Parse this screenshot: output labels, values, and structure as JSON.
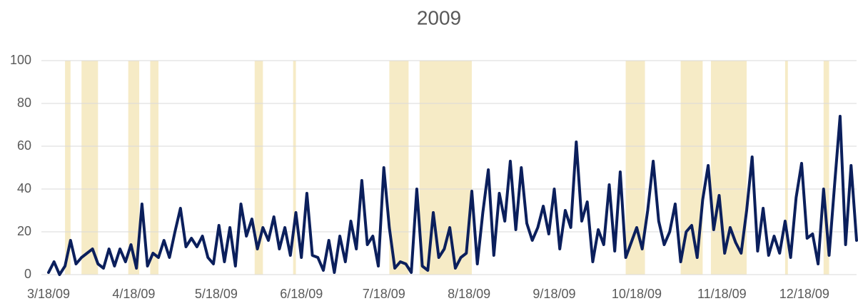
{
  "chart_data": {
    "type": "line",
    "title": "2009",
    "x": [
      "3/18/09",
      "3/20/09",
      "3/22/09",
      "3/24/09",
      "3/26/09",
      "3/28/09",
      "3/30/09",
      "4/1/09",
      "4/3/09",
      "4/5/09",
      "4/7/09",
      "4/9/09",
      "4/11/09",
      "4/13/09",
      "4/15/09",
      "4/17/09",
      "4/19/09",
      "4/21/09",
      "4/23/09",
      "4/25/09",
      "4/27/09",
      "4/29/09",
      "5/1/09",
      "5/3/09",
      "5/5/09",
      "5/7/09",
      "5/9/09",
      "5/11/09",
      "5/13/09",
      "5/15/09",
      "5/17/09",
      "5/19/09",
      "5/21/09",
      "5/23/09",
      "5/25/09",
      "5/27/09",
      "5/29/09",
      "5/31/09",
      "6/2/09",
      "6/4/09",
      "6/6/09",
      "6/8/09",
      "6/10/09",
      "6/12/09",
      "6/14/09",
      "6/16/09",
      "6/18/09",
      "6/20/09",
      "6/22/09",
      "6/24/09",
      "6/26/09",
      "6/28/09",
      "6/30/09",
      "7/2/09",
      "7/4/09",
      "7/6/09",
      "7/8/09",
      "7/10/09",
      "7/12/09",
      "7/14/09",
      "7/16/09",
      "7/18/09",
      "7/20/09",
      "7/22/09",
      "7/24/09",
      "7/26/09",
      "7/28/09",
      "7/30/09",
      "8/1/09",
      "8/3/09",
      "8/5/09",
      "8/7/09",
      "8/9/09",
      "8/11/09",
      "8/13/09",
      "8/15/09",
      "8/17/09",
      "8/19/09",
      "8/21/09",
      "8/23/09",
      "8/25/09",
      "8/27/09",
      "8/29/09",
      "8/31/09",
      "9/2/09",
      "9/4/09",
      "9/6/09",
      "9/8/09",
      "9/10/09",
      "9/12/09",
      "9/14/09",
      "9/16/09",
      "9/18/09",
      "9/20/09",
      "9/22/09",
      "9/24/09",
      "9/26/09",
      "9/28/09",
      "9/30/09",
      "10/2/09",
      "10/4/09",
      "10/6/09",
      "10/8/09",
      "10/10/09",
      "10/12/09",
      "10/14/09",
      "10/16/09",
      "10/18/09",
      "10/20/09",
      "10/22/09",
      "10/24/09",
      "10/26/09",
      "10/28/09",
      "10/30/09",
      "11/1/09",
      "11/3/09",
      "11/5/09",
      "11/7/09",
      "11/9/09",
      "11/11/09",
      "11/13/09",
      "11/15/09",
      "11/17/09",
      "11/19/09",
      "11/21/09",
      "11/23/09",
      "11/25/09",
      "11/27/09",
      "11/29/09",
      "12/1/09",
      "12/3/09",
      "12/5/09",
      "12/7/09",
      "12/9/09",
      "12/11/09",
      "12/13/09",
      "12/15/09",
      "12/17/09",
      "12/19/09",
      "12/21/09",
      "12/23/09",
      "12/25/09",
      "12/27/09",
      "12/29/09",
      "12/31/09",
      "1/2/10",
      "1/4/10",
      "1/6/10"
    ],
    "series": [
      {
        "color": "#0b1f5c",
        "values": [
          1,
          6,
          0,
          4,
          16,
          5,
          8,
          10,
          12,
          5,
          3,
          12,
          4,
          12,
          6,
          14,
          3,
          33,
          4,
          10,
          8,
          16,
          8,
          20,
          31,
          13,
          17,
          13,
          18,
          8,
          5,
          23,
          6,
          22,
          4,
          33,
          18,
          26,
          12,
          22,
          16,
          27,
          12,
          22,
          9,
          29,
          8,
          38,
          9,
          8,
          2,
          16,
          1,
          18,
          6,
          25,
          12,
          44,
          14,
          18,
          4,
          50,
          22,
          3,
          6,
          5,
          1,
          40,
          4,
          2,
          29,
          8,
          12,
          22,
          3,
          8,
          10,
          39,
          5,
          29,
          49,
          9,
          38,
          25,
          53,
          21,
          50,
          24,
          16,
          22,
          32,
          19,
          40,
          12,
          30,
          22,
          62,
          25,
          34,
          6,
          21,
          14,
          42,
          11,
          48,
          8,
          15,
          22,
          12,
          30,
          53,
          25,
          14,
          20,
          33,
          6,
          20,
          23,
          8,
          35,
          51,
          21,
          37,
          10,
          22,
          15,
          10,
          30,
          55,
          11,
          31,
          9,
          18,
          10,
          25,
          8,
          36,
          52,
          17,
          19,
          5,
          40,
          9,
          42,
          74,
          14,
          51,
          16
        ]
      }
    ],
    "shaded_ranges": [
      [
        "3/24/09",
        "3/26/09"
      ],
      [
        "3/30/09",
        "4/5/09"
      ],
      [
        "4/16/09",
        "4/20/09"
      ],
      [
        "4/24/09",
        "4/27/09"
      ],
      [
        "6/1/09",
        "6/4/09"
      ],
      [
        "6/15/09",
        "6/16/09"
      ],
      [
        "7/20/09",
        "7/27/09"
      ],
      [
        "7/31/09",
        "8/19/09"
      ],
      [
        "10/14/09",
        "10/21/09"
      ],
      [
        "11/3/09",
        "11/11/09"
      ],
      [
        "11/14/09",
        "11/27/09"
      ],
      [
        "12/11/09",
        "12/12/09"
      ],
      [
        "12/25/09",
        "12/27/09"
      ]
    ],
    "shade_color": "#f6ebc6",
    "xlim": [
      "3/18/09",
      "1/6/10"
    ],
    "xticks": [
      "3/18/09",
      "4/18/09",
      "5/18/09",
      "6/18/09",
      "7/18/09",
      "8/18/09",
      "9/18/09",
      "10/18/09",
      "11/18/09",
      "12/18/09"
    ],
    "ylim": [
      0,
      100
    ],
    "yticks": [
      0,
      20,
      40,
      60,
      80,
      100
    ],
    "grid": true
  }
}
